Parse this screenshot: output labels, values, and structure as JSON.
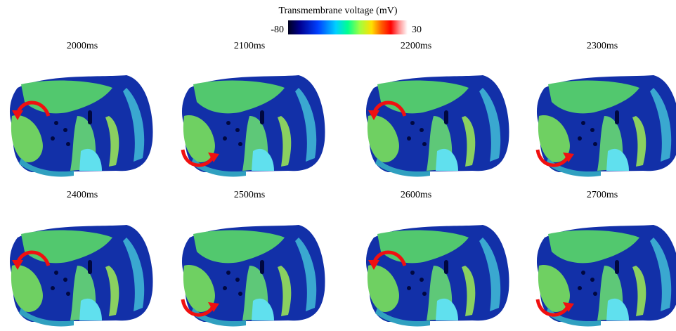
{
  "colorbar": {
    "title": "Transmembrane voltage (mV)",
    "min": -80,
    "max": 30
  },
  "panels": [
    {
      "label": "2000ms"
    },
    {
      "label": "2100ms"
    },
    {
      "label": "2200ms"
    },
    {
      "label": "2300ms"
    },
    {
      "label": "2400ms"
    },
    {
      "label": "2500ms"
    },
    {
      "label": "2600ms"
    },
    {
      "label": "2700ms"
    }
  ]
}
